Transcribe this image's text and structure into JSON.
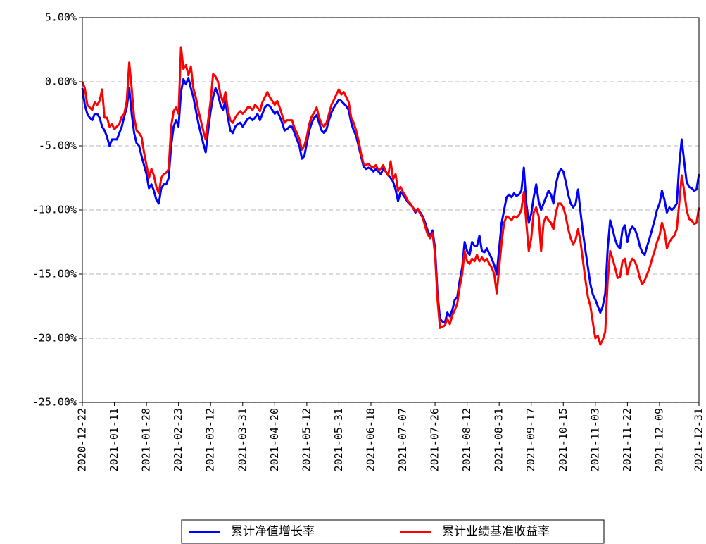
{
  "chart_data": {
    "type": "line",
    "categories": [
      "2020-12-22",
      null,
      null,
      null,
      null,
      null,
      null,
      null,
      null,
      null,
      null,
      null,
      null,
      "2021-01-11",
      null,
      null,
      null,
      null,
      null,
      null,
      null,
      null,
      null,
      null,
      null,
      null,
      "2021-01-28",
      null,
      null,
      null,
      null,
      null,
      null,
      null,
      null,
      null,
      null,
      null,
      null,
      "2021-02-23",
      null,
      null,
      null,
      null,
      null,
      null,
      null,
      null,
      null,
      null,
      null,
      null,
      "2021-03-12",
      null,
      null,
      null,
      null,
      null,
      null,
      null,
      null,
      null,
      null,
      null,
      null,
      "2021-03-31",
      null,
      null,
      null,
      null,
      null,
      null,
      null,
      null,
      null,
      null,
      null,
      null,
      "2021-04-20",
      null,
      null,
      null,
      null,
      null,
      null,
      null,
      null,
      null,
      null,
      null,
      null,
      "2021-05-12",
      null,
      null,
      null,
      null,
      null,
      null,
      null,
      null,
      null,
      null,
      null,
      null,
      "2021-05-31",
      null,
      null,
      null,
      null,
      null,
      null,
      null,
      null,
      null,
      null,
      null,
      null,
      "2021-06-18",
      null,
      null,
      null,
      null,
      null,
      null,
      null,
      null,
      null,
      null,
      null,
      null,
      "2021-07-07",
      null,
      null,
      null,
      null,
      null,
      null,
      null,
      null,
      null,
      null,
      null,
      null,
      "2021-07-26",
      null,
      null,
      null,
      null,
      null,
      null,
      null,
      null,
      null,
      null,
      null,
      null,
      "2021-08-12",
      null,
      null,
      null,
      null,
      null,
      null,
      null,
      null,
      null,
      null,
      null,
      null,
      "2021-08-31",
      null,
      null,
      null,
      null,
      null,
      null,
      null,
      null,
      null,
      null,
      null,
      null,
      "2021-09-17",
      null,
      null,
      null,
      null,
      null,
      null,
      null,
      null,
      null,
      null,
      null,
      null,
      "2021-10-15",
      null,
      null,
      null,
      null,
      null,
      null,
      null,
      null,
      null,
      null,
      null,
      null,
      "2021-11-03",
      null,
      null,
      null,
      null,
      null,
      null,
      null,
      null,
      null,
      null,
      null,
      null,
      "2021-11-22",
      null,
      null,
      null,
      null,
      null,
      null,
      null,
      null,
      null,
      null,
      null,
      null,
      "2021-12-09",
      null,
      null,
      null,
      null,
      null,
      null,
      null,
      null,
      null,
      null,
      null,
      null,
      null,
      null,
      null,
      "2021-12-31"
    ],
    "series": [
      {
        "name": "累计净值增长率",
        "color": "#0000ff",
        "values": [
          -0.5,
          -1.8,
          -2.5,
          -2.8,
          -3,
          -2.5,
          -2.5,
          -2.8,
          -3.5,
          -3.8,
          -4.3,
          -5,
          -4.5,
          -4.5,
          -4.5,
          -4,
          -3.5,
          -2.7,
          -2,
          -0.5,
          -2.5,
          -4,
          -4.8,
          -5,
          -5.8,
          -6.5,
          -7.2,
          -8.3,
          -8,
          -8.5,
          -9.2,
          -9.5,
          -8.3,
          -8,
          -8,
          -7.5,
          -5,
          -3.5,
          -3,
          -3.5,
          -0.8,
          0.2,
          -0.2,
          0.3,
          -0.5,
          -1.2,
          -2.2,
          -3.2,
          -4,
          -4.8,
          -5.5,
          -3.8,
          -2.3,
          -1.2,
          -0.5,
          -1,
          -1.8,
          -2.2,
          -1.5,
          -2.8,
          -3.8,
          -4,
          -3.5,
          -3.3,
          -3.2,
          -3.5,
          -3.2,
          -2.9,
          -2.8,
          -3,
          -2.8,
          -2.5,
          -3,
          -2.5,
          -2,
          -1.8,
          -1.9,
          -2.2,
          -2.5,
          -2.3,
          -2.7,
          -3.2,
          -3.8,
          -3.7,
          -3.5,
          -3.5,
          -4,
          -4.5,
          -5,
          -6,
          -5.8,
          -4.8,
          -3.8,
          -3.2,
          -2.8,
          -2.6,
          -3.2,
          -3.8,
          -4,
          -3.7,
          -3,
          -2.4,
          -2,
          -1.7,
          -1.4,
          -1.5,
          -1.7,
          -1.9,
          -2.2,
          -3.2,
          -3.8,
          -4.2,
          -5,
          -5.8,
          -6.6,
          -6.8,
          -6.7,
          -6.8,
          -7,
          -6.8,
          -7,
          -7.2,
          -6.8,
          -7,
          -7.3,
          -7.5,
          -7.8,
          -8.4,
          -9.3,
          -8.6,
          -8.8,
          -9.1,
          -9.4,
          -9.6,
          -9.8,
          -10.2,
          -10,
          -10.2,
          -10.5,
          -11,
          -11.6,
          -12,
          -11.6,
          -13,
          -16.5,
          -18.5,
          -18.7,
          -18.8,
          -18,
          -18.3,
          -17.8,
          -17,
          -16.8,
          -15.5,
          -14.5,
          -12.5,
          -13.2,
          -13.5,
          -12.5,
          -12.8,
          -12.8,
          -12,
          -13.2,
          -13.3,
          -13,
          -13.4,
          -13.8,
          -14.3,
          -15,
          -13,
          -11,
          -10,
          -9,
          -8.8,
          -9,
          -8.7,
          -8.9,
          -8.8,
          -8.5,
          -6.7,
          -9.5,
          -11,
          -10.3,
          -9,
          -8,
          -9.3,
          -10,
          -9.5,
          -9,
          -8.5,
          -8.8,
          -9.5,
          -8,
          -7.2,
          -6.8,
          -7,
          -7.8,
          -8.8,
          -9.5,
          -9.8,
          -9.5,
          -8.4,
          -10.2,
          -11.8,
          -13.2,
          -14.5,
          -15.8,
          -16.6,
          -17,
          -17.5,
          -18,
          -17.5,
          -16.5,
          -13,
          -10.8,
          -11.5,
          -12.3,
          -12.8,
          -13,
          -11.5,
          -11.2,
          -12.5,
          -11.6,
          -11.3,
          -11.5,
          -12,
          -12.8,
          -13.3,
          -13.5,
          -12.8,
          -12.2,
          -11.5,
          -10.8,
          -10,
          -9.5,
          -8.5,
          -9.2,
          -10.2,
          -9.8,
          -10,
          -9.8,
          -9.5,
          -6.5,
          -4.5,
          -6.2,
          -7.8,
          -8.2,
          -8.3,
          -8.5,
          -8.4,
          -7.2
        ]
      },
      {
        "name": "累计业绩基准收益率",
        "color": "#ff0000",
        "values": [
          0,
          -0.5,
          -1.8,
          -2,
          -2.2,
          -1.6,
          -1.8,
          -1.5,
          -0.6,
          -2.8,
          -2.8,
          -3.5,
          -3.3,
          -3.7,
          -3.5,
          -3.3,
          -2.7,
          -2.5,
          -1.5,
          1.5,
          -0.5,
          -2.8,
          -3.8,
          -4,
          -4.3,
          -5.5,
          -6.5,
          -7.5,
          -6.8,
          -7.3,
          -8.2,
          -8.7,
          -7.5,
          -7.2,
          -7.1,
          -6.8,
          -3.5,
          -2.3,
          -2,
          -2.5,
          2.7,
          1,
          1.3,
          0.5,
          1.2,
          -0.5,
          -1.2,
          -2.2,
          -3,
          -3.8,
          -4.5,
          -3,
          -1.5,
          0.6,
          0.4,
          0,
          -1,
          -1.6,
          -0.8,
          -2.2,
          -3,
          -3.2,
          -2.8,
          -2.5,
          -2.3,
          -2.5,
          -2.3,
          -2,
          -2,
          -2.2,
          -1.8,
          -2,
          -2.3,
          -1.6,
          -1.2,
          -0.8,
          -1.2,
          -1.5,
          -1.8,
          -1.5,
          -2,
          -2.6,
          -3.2,
          -3,
          -3,
          -3,
          -3.6,
          -4,
          -4.5,
          -5.3,
          -5,
          -4.3,
          -3.3,
          -2.7,
          -2.4,
          -2,
          -2.8,
          -3.3,
          -3.5,
          -3.2,
          -2.5,
          -1.8,
          -1.4,
          -1,
          -0.6,
          -1,
          -0.8,
          -1.2,
          -1.6,
          -2.8,
          -3.2,
          -3.8,
          -4.6,
          -5.6,
          -6.4,
          -6.5,
          -6.4,
          -6.6,
          -6.7,
          -6.5,
          -6.9,
          -6.8,
          -6.5,
          -7,
          -7.3,
          -6.2,
          -7.6,
          -7.2,
          -8.5,
          -8.2,
          -8.6,
          -8.9,
          -9.3,
          -9.5,
          -9.8,
          -10.1,
          -9.9,
          -10.3,
          -10.6,
          -11.3,
          -11.9,
          -12.2,
          -11.8,
          -13.5,
          -17,
          -19.2,
          -19.1,
          -19,
          -18.5,
          -18.9,
          -18.2,
          -17.8,
          -17.3,
          -16,
          -15,
          -13.2,
          -14,
          -14.2,
          -13.8,
          -14,
          -13.5,
          -14,
          -13.7,
          -14,
          -13.8,
          -14.2,
          -14.5,
          -15,
          -16.5,
          -14.5,
          -12.5,
          -11,
          -10.5,
          -10.6,
          -10.8,
          -10.5,
          -10.6,
          -10.4,
          -10,
          -8.6,
          -11,
          -13.2,
          -12.2,
          -10.2,
          -9.8,
          -10.5,
          -13.2,
          -11,
          -10.5,
          -10.8,
          -11,
          -11.5,
          -10.2,
          -9.5,
          -9.5,
          -9.8,
          -10.5,
          -11.5,
          -12.2,
          -12.7,
          -12.3,
          -11.5,
          -12.5,
          -14,
          -15.5,
          -16.8,
          -17.5,
          -18.8,
          -20,
          -19.8,
          -20.5,
          -20.1,
          -19.5,
          -15.5,
          -13.2,
          -13.8,
          -14.5,
          -15.3,
          -15.2,
          -14,
          -13.8,
          -15,
          -14.2,
          -13.8,
          -14,
          -14.5,
          -15.3,
          -15.8,
          -15.5,
          -15,
          -14.5,
          -13.8,
          -13.2,
          -12.5,
          -12,
          -11,
          -11.6,
          -13,
          -12.5,
          -12.2,
          -12,
          -11.5,
          -9.5,
          -7.3,
          -8.5,
          -10,
          -10.7,
          -10.8,
          -11.1,
          -11,
          -9.8
        ]
      }
    ],
    "ylim": [
      -25,
      5
    ],
    "yticks": [
      {
        "value": 5,
        "label": "5.00%"
      },
      {
        "value": 0,
        "label": "0.00%"
      },
      {
        "value": -5,
        "label": "-5.00%"
      },
      {
        "value": -10,
        "label": "-10.00%"
      },
      {
        "value": -15,
        "label": "-15.00%"
      },
      {
        "value": -20,
        "label": "-20.00%"
      },
      {
        "value": -25,
        "label": "-25.00%"
      }
    ],
    "grid": true,
    "legend": "bottom"
  }
}
